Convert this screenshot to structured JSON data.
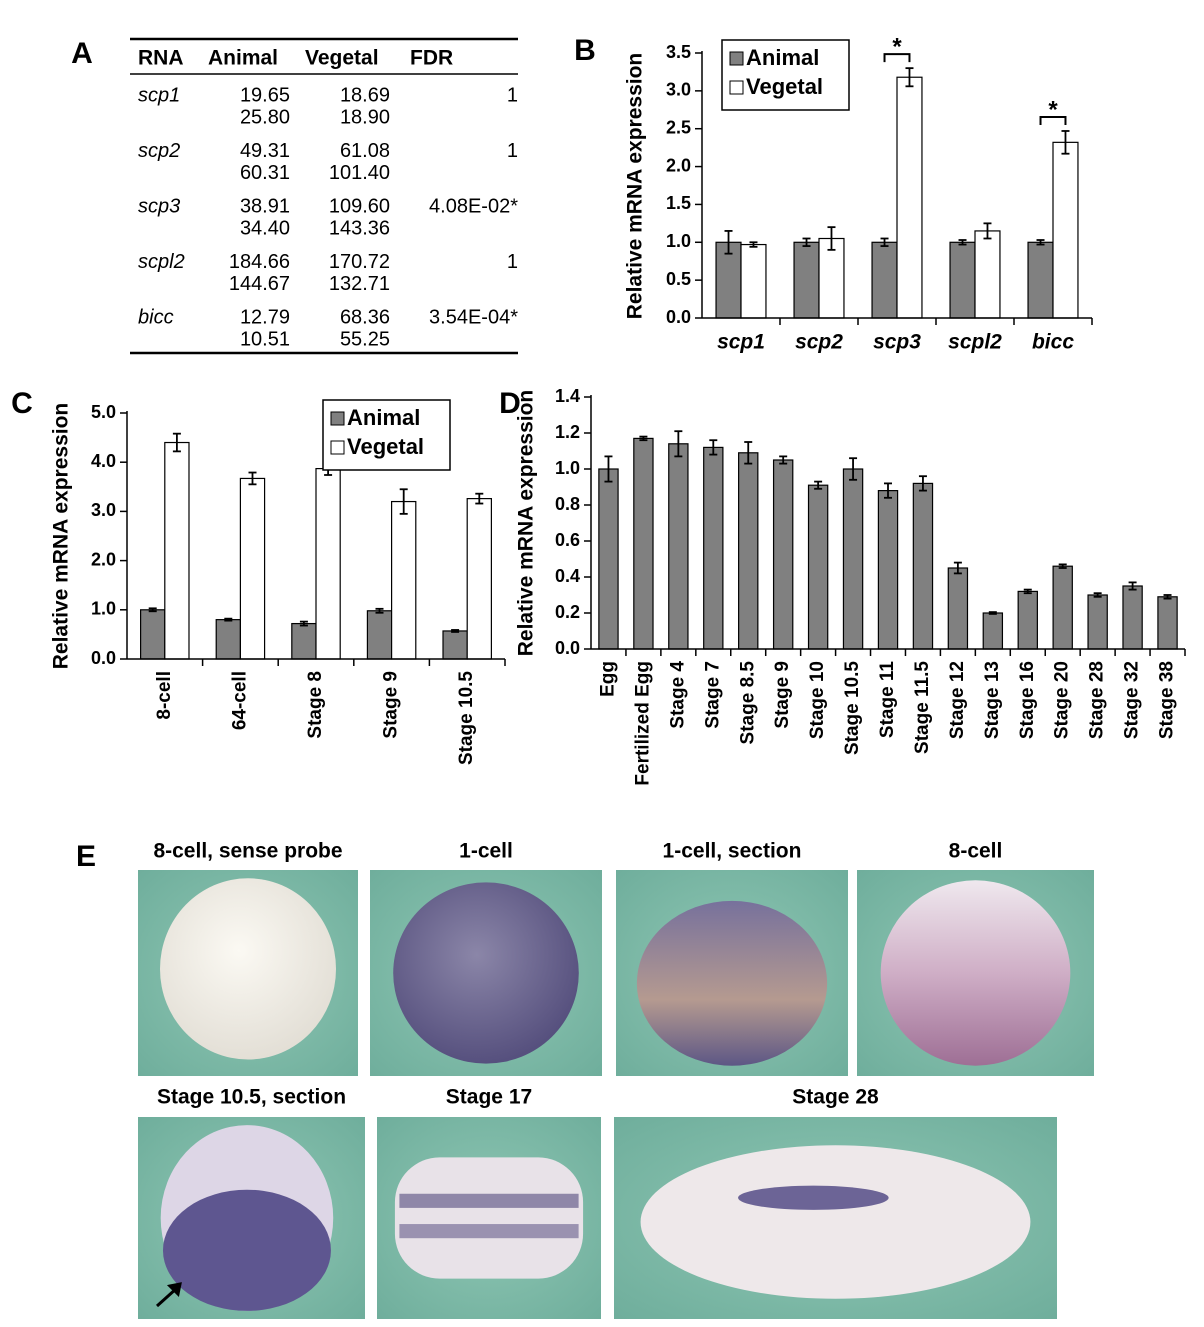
{
  "panel_labels": [
    "A",
    "B",
    "C",
    "D",
    "E"
  ],
  "table": {
    "header": [
      "RNA",
      "Animal",
      "Vegetal",
      "FDR"
    ],
    "rows": [
      {
        "rna": "scp1",
        "animal": [
          "19.65",
          "25.80"
        ],
        "vegetal": [
          "18.69",
          "18.90"
        ],
        "fdr": "1"
      },
      {
        "rna": "scp2",
        "animal": [
          "49.31",
          "60.31"
        ],
        "vegetal": [
          "61.08",
          "101.40"
        ],
        "fdr": "1"
      },
      {
        "rna": "scp3",
        "animal": [
          "38.91",
          "34.40"
        ],
        "vegetal": [
          "109.60",
          "143.36"
        ],
        "fdr": "4.08E-02*"
      },
      {
        "rna": "scpl2",
        "animal": [
          "184.66",
          "144.67"
        ],
        "vegetal": [
          "170.72",
          "132.71"
        ],
        "fdr": "1"
      },
      {
        "rna": "bicc",
        "animal": [
          "12.79",
          "10.51"
        ],
        "vegetal": [
          "68.36",
          "55.25"
        ],
        "fdr": "3.54E-04*"
      }
    ]
  },
  "chart_data": [
    {
      "type": "bar",
      "y_label": "Relative mRNA expression",
      "categories": [
        "scp1",
        "scp2",
        "scp3",
        "scpl2",
        "bicc"
      ],
      "series": [
        {
          "name": "Animal",
          "color": "#808080",
          "values": [
            1.0,
            1.0,
            1.0,
            1.0,
            1.0
          ],
          "errors": [
            0.15,
            0.05,
            0.05,
            0.03,
            0.03
          ]
        },
        {
          "name": "Vegetal",
          "color": "#ffffff",
          "values": [
            0.97,
            1.05,
            3.18,
            1.15,
            2.32
          ],
          "errors": [
            0.03,
            0.15,
            0.12,
            0.1,
            0.15
          ]
        }
      ],
      "significance": [
        null,
        null,
        "*",
        null,
        "*"
      ],
      "ylim": [
        0,
        3.5
      ],
      "yticks": [
        {
          "value": 0,
          "label": "0.0"
        },
        0.5,
        {
          "value": 1,
          "label": "1.0"
        },
        1.5,
        {
          "value": 2,
          "label": "2.0"
        },
        2.5,
        {
          "value": 3,
          "label": "3.0"
        },
        3.5
      ],
      "legend": "upper left"
    },
    {
      "type": "bar",
      "y_label": "Relative mRNA expression",
      "categories": [
        "8-cell",
        "64-cell",
        "Stage 8",
        "Stage 9",
        "Stage 10.5"
      ],
      "series": [
        {
          "name": "Animal",
          "color": "#808080",
          "values": [
            1.0,
            0.8,
            0.72,
            0.98,
            0.57
          ],
          "errors": [
            0.03,
            0.02,
            0.04,
            0.04,
            0.02
          ]
        },
        {
          "name": "Vegetal",
          "color": "#ffffff",
          "values": [
            4.4,
            3.67,
            3.87,
            3.2,
            3.26
          ],
          "errors": [
            0.18,
            0.12,
            0.13,
            0.25,
            0.1
          ]
        }
      ],
      "ylim": [
        0,
        5
      ],
      "yticks": [
        {
          "value": 0,
          "label": "0.0"
        },
        {
          "value": 1,
          "label": "1.0"
        },
        {
          "value": 2,
          "label": "2.0"
        },
        {
          "value": 3,
          "label": "3.0"
        },
        {
          "value": 4,
          "label": "4.0"
        },
        {
          "value": 5,
          "label": "5.0"
        }
      ],
      "legend": "upper right"
    },
    {
      "type": "bar",
      "y_label": "Relative mRNA expression",
      "categories": [
        "Egg",
        "Fertilized Egg",
        "Stage 4",
        "Stage 7",
        "Stage 8.5",
        "Stage 9",
        "Stage 10",
        "Stage 10.5",
        "Stage 11",
        "Stage 11.5",
        "Stage 12",
        "Stage 13",
        "Stage 16",
        "Stage 20",
        "Stage 28",
        "Stage 32",
        "Stage 38"
      ],
      "color": "#808080",
      "values": [
        1.0,
        1.17,
        1.14,
        1.12,
        1.09,
        1.05,
        0.91,
        1.0,
        0.88,
        0.92,
        0.45,
        0.2,
        0.32,
        0.46,
        0.3,
        0.35,
        0.29
      ],
      "errors": [
        0.07,
        0.01,
        0.07,
        0.04,
        0.06,
        0.02,
        0.02,
        0.06,
        0.04,
        0.04,
        0.03,
        0.005,
        0.01,
        0.01,
        0.01,
        0.02,
        0.01
      ],
      "ylim": [
        0,
        1.4
      ],
      "yticks": [
        {
          "value": 0,
          "label": "0.0"
        },
        0.2,
        0.4,
        0.6,
        0.8,
        {
          "value": 1,
          "label": "1.0"
        },
        1.2,
        1.4
      ]
    }
  ],
  "photos": [
    [
      "8-cell, sense probe",
      "1-cell",
      "1-cell, section",
      "8-cell"
    ],
    [
      "Stage 10.5, section",
      "Stage 17",
      "Stage 28"
    ]
  ]
}
